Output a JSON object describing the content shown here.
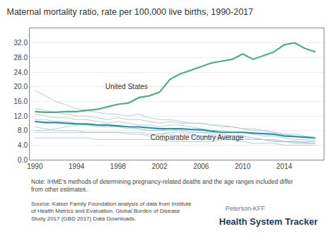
{
  "chart_data": {
    "type": "line",
    "title": "Maternal mortality ratio, rate per 100,000 live births, 1990-2017",
    "x": [
      1990,
      1991,
      1992,
      1993,
      1994,
      1995,
      1996,
      1997,
      1998,
      1999,
      2000,
      2001,
      2002,
      2003,
      2004,
      2005,
      2006,
      2007,
      2008,
      2009,
      2010,
      2011,
      2012,
      2013,
      2014,
      2015,
      2016,
      2017
    ],
    "series": [
      {
        "color": "#aac5cf",
        "values": [
          19.0,
          17.5,
          16.0,
          15.0,
          14.0,
          13.5,
          13.0,
          12.5,
          12.5,
          12.0,
          12.5,
          11.5,
          11.0,
          11.0,
          10.5,
          10.0,
          10.0,
          9.5,
          9.5,
          9.0,
          8.5,
          8.5,
          8.0,
          7.5,
          7.0,
          7.0,
          6.5,
          6.0
        ]
      },
      {
        "color": "#aac5cf",
        "values": [
          14.0,
          13.5,
          13.0,
          12.5,
          12.0,
          12.0,
          11.5,
          11.0,
          11.5,
          11.0,
          11.0,
          10.5,
          10.0,
          10.5,
          10.0,
          10.0,
          10.0,
          9.5,
          9.0,
          9.0,
          8.5,
          8.0,
          8.0,
          7.5,
          7.0,
          6.5,
          6.0,
          5.5
        ]
      },
      {
        "color": "#aac5cf",
        "values": [
          12.5,
          12.0,
          11.5,
          11.5,
          11.0,
          11.0,
          10.5,
          10.0,
          10.5,
          10.0,
          9.5,
          9.5,
          9.0,
          9.5,
          9.5,
          9.0,
          8.5,
          8.0,
          8.0,
          7.5,
          7.5,
          7.0,
          6.5,
          6.5,
          6.0,
          5.5,
          5.5,
          5.0
        ]
      },
      {
        "color": "#aac5cf",
        "values": [
          11.0,
          11.0,
          10.5,
          10.5,
          10.0,
          9.5,
          9.5,
          9.0,
          9.0,
          8.5,
          8.5,
          8.0,
          8.0,
          8.0,
          8.0,
          7.5,
          7.5,
          7.0,
          6.5,
          6.5,
          6.5,
          6.0,
          5.5,
          5.5,
          5.0,
          5.0,
          4.8,
          4.5
        ]
      },
      {
        "color": "#aac5cf",
        "values": [
          8.0,
          8.0,
          8.5,
          9.0,
          9.5,
          9.5,
          9.0,
          9.0,
          9.5,
          9.0,
          8.5,
          8.0,
          8.0,
          8.5,
          8.0,
          7.5,
          7.5,
          7.5,
          7.0,
          6.5,
          6.5,
          6.0,
          5.5,
          5.5,
          5.0,
          4.8,
          4.5,
          4.5
        ]
      },
      {
        "color": "#aac5cf",
        "values": [
          9.0,
          8.5,
          8.0,
          8.0,
          8.0,
          7.5,
          7.5,
          7.5,
          7.5,
          7.0,
          7.0,
          6.5,
          7.0,
          7.5,
          7.5,
          7.0,
          6.5,
          6.0,
          6.0,
          5.5,
          5.5,
          5.5,
          5.5,
          5.0,
          5.0,
          4.5,
          4.5,
          4.5
        ]
      },
      {
        "color": "#aac5cf",
        "values": [
          7.5,
          7.5,
          7.5,
          7.5,
          7.5,
          7.5,
          7.5,
          7.5,
          7.5,
          7.5,
          7.5,
          7.0,
          7.0,
          7.0,
          6.5,
          6.5,
          6.5,
          6.5,
          6.0,
          6.0,
          6.0,
          5.5,
          5.5,
          5.0,
          5.0,
          5.0,
          5.0,
          5.0
        ]
      },
      {
        "color": "#aac5cf",
        "values": [
          6.0,
          6.0,
          6.0,
          6.0,
          6.0,
          6.0,
          5.5,
          5.5,
          5.5,
          5.5,
          5.5,
          5.5,
          5.5,
          5.0,
          5.0,
          5.0,
          5.0,
          5.0,
          5.5,
          5.5,
          5.0,
          4.5,
          4.5,
          4.5,
          4.0,
          4.0,
          4.0,
          4.0
        ]
      },
      {
        "name": "United States",
        "color": "#4caf7d",
        "values": [
          13.2,
          13.0,
          13.0,
          13.2,
          13.2,
          13.5,
          13.8,
          14.5,
          15.2,
          15.5,
          17.0,
          17.5,
          18.5,
          22.0,
          23.5,
          24.5,
          25.5,
          26.5,
          27.0,
          27.5,
          29.0,
          27.5,
          28.5,
          29.5,
          31.5,
          32.0,
          30.5,
          29.5
        ]
      },
      {
        "name": "Comparable Country Average",
        "color": "#2196a8",
        "values": [
          10.5,
          10.2,
          10.2,
          10.0,
          9.8,
          9.8,
          9.5,
          9.5,
          9.2,
          9.0,
          9.0,
          8.8,
          8.5,
          8.5,
          8.5,
          8.3,
          8.2,
          7.8,
          7.5,
          7.5,
          7.5,
          7.3,
          7.2,
          7.0,
          6.5,
          6.3,
          6.2,
          6.0
        ]
      }
    ],
    "xlim": [
      1989.5,
      2017.8
    ],
    "xticks": [
      1990,
      1994,
      1998,
      2002,
      2006,
      2010,
      2014
    ],
    "ylim": [
      0.0,
      36.0
    ],
    "yticks": [
      {
        "value": 0.0,
        "label": "0.0"
      },
      {
        "value": 4.0,
        "label": "4.0"
      },
      {
        "value": 8.0,
        "label": "8.0"
      },
      {
        "value": 12.0,
        "label": "12.0"
      },
      {
        "value": 16.0,
        "label": "16.0"
      },
      {
        "value": 20.0,
        "label": "20.0"
      },
      {
        "value": 24.0,
        "label": "24.0"
      },
      {
        "value": 28.0,
        "label": "28.0"
      },
      {
        "value": 32.0,
        "label": "32.0"
      }
    ],
    "grid": "y",
    "annotations": [
      {
        "text": "Note: IHME’s methods of determining pregnancy-related deaths and the age ranges included differ from other estimates."
      },
      {
        "text": "Source: Kaiser Family Foundation analysis of data from Institute\nof Health Metrics and Evaluation, Global Burden of Disease\nStudy 2017 (GBD 2017) Data Downloads."
      },
      {
        "text": "Peterson-KFF"
      },
      {
        "text": "Health System Tracker"
      }
    ]
  }
}
